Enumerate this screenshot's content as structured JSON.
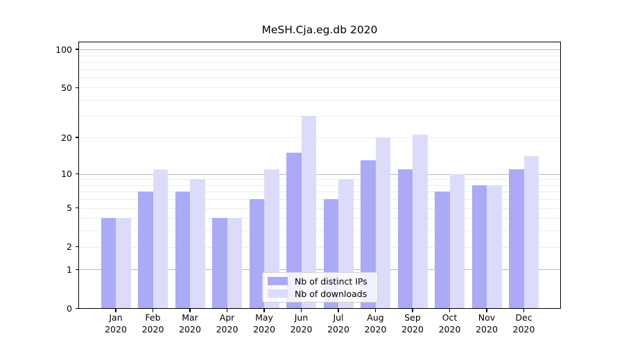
{
  "chart_data": {
    "type": "bar",
    "title": "MeSH.Cja.eg.db 2020",
    "categories": [
      "Jan",
      "Feb",
      "Mar",
      "Apr",
      "May",
      "Jun",
      "Jul",
      "Aug",
      "Sep",
      "Oct",
      "Nov",
      "Dec"
    ],
    "year_label": "2020",
    "series": [
      {
        "name": "Nb of distinct IPs",
        "color": "#aaaaf7",
        "values": [
          4,
          7,
          7,
          4,
          6,
          15,
          6,
          13,
          11,
          7,
          8,
          11
        ]
      },
      {
        "name": "Nb of downloads",
        "color": "#dcdcfa",
        "values": [
          4,
          11,
          9,
          4,
          11,
          30,
          9,
          20,
          21,
          10,
          8,
          14
        ]
      }
    ],
    "xlabel": "",
    "ylabel": "",
    "yscale": "log1p",
    "y_ticks": [
      0,
      1,
      2,
      5,
      10,
      20,
      50,
      100
    ],
    "y_minor_gridlines": [
      2,
      3,
      4,
      5,
      6,
      7,
      8,
      9,
      20,
      30,
      40,
      50,
      60,
      70,
      80,
      90
    ],
    "y_major_gridlines": [
      1,
      10,
      100
    ],
    "ylim": [
      0,
      114
    ],
    "grid": true,
    "legend_position": "lower-center",
    "style": {
      "minor_grid_color": "#ececec",
      "major_grid_color": "#b9b9b9",
      "spine_color": "#000000",
      "background": "#ffffff"
    }
  }
}
